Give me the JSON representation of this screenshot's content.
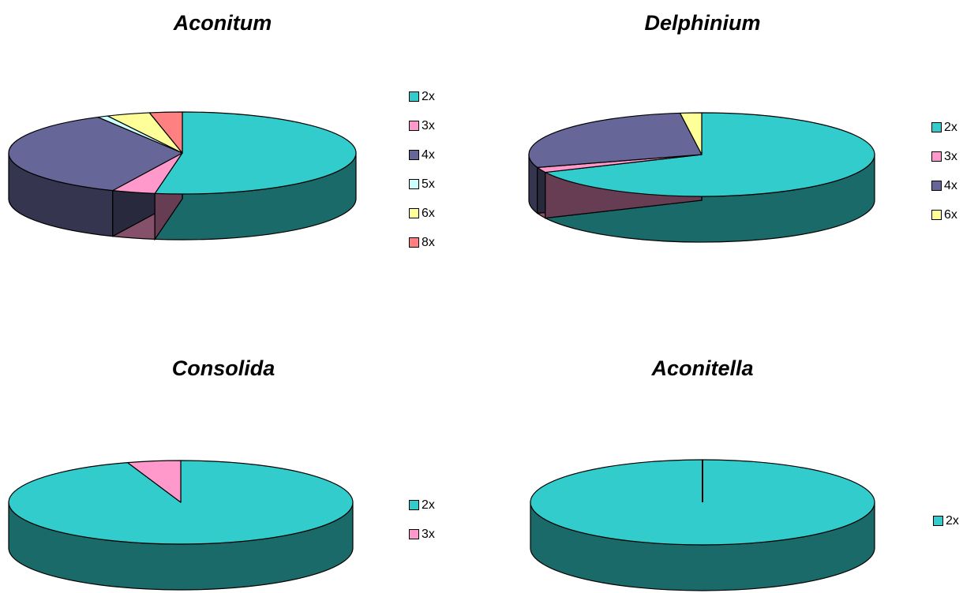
{
  "chart_data": [
    {
      "type": "pie",
      "title": "Aconitum",
      "categories": [
        "2x",
        "3x",
        "4x",
        "5x",
        "6x",
        "8x"
      ],
      "values": [
        52,
        4,
        35,
        1,
        4,
        3
      ],
      "colors": [
        "#33CCCC",
        "#FF99CC",
        "#666699",
        "#CCFFFF",
        "#FFFF99",
        "#FF8080"
      ],
      "legend_position": "right",
      "three_d": true
    },
    {
      "type": "pie",
      "title": "Delphinium",
      "categories": [
        "2x",
        "3x",
        "4x",
        "6x"
      ],
      "values": [
        68,
        2,
        28,
        2
      ],
      "colors": [
        "#33CCCC",
        "#FF99CC",
        "#666699",
        "#FFFF99"
      ],
      "legend_position": "right",
      "three_d": true
    },
    {
      "type": "pie",
      "title": "Consolida",
      "categories": [
        "2x",
        "3x"
      ],
      "values": [
        95,
        5
      ],
      "colors": [
        "#33CCCC",
        "#FF99CC"
      ],
      "legend_position": "right",
      "three_d": true
    },
    {
      "type": "pie",
      "title": "Aconitella",
      "categories": [
        "2x"
      ],
      "values": [
        100
      ],
      "colors": [
        "#33CCCC"
      ],
      "legend_position": "right",
      "three_d": true
    }
  ]
}
